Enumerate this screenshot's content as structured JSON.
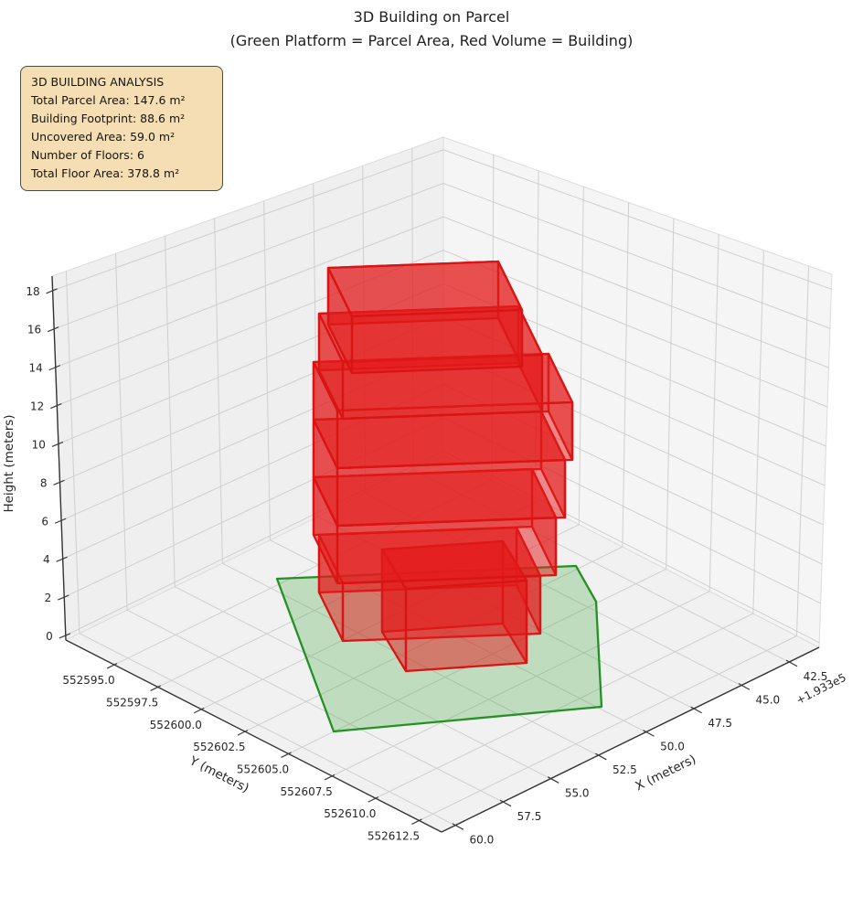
{
  "title": {
    "line1": "3D Building on Parcel",
    "line2": "(Green Platform = Parcel Area, Red Volume = Building)"
  },
  "info_box": {
    "lines": [
      "3D BUILDING ANALYSIS",
      "Total Parcel Area: 147.6 m²",
      "Building Footprint: 88.6 m²",
      "Uncovered Area: 59.0 m²",
      "Number of Floors: 6",
      "Total Floor Area: 378.8 m²"
    ]
  },
  "axes": {
    "x": {
      "label": "X (meters)",
      "ticks": [
        "42.5",
        "45.0",
        "47.5",
        "50.0",
        "52.5",
        "55.0",
        "57.5",
        "60.0"
      ],
      "offset_text": "+1.933e5"
    },
    "y": {
      "label": "Y (meters)",
      "ticks": [
        "552595.0",
        "552597.5",
        "552600.0",
        "552602.5",
        "552605.0",
        "552607.5",
        "552610.0",
        "552612.5"
      ]
    },
    "z": {
      "label": "Height (meters)",
      "ticks": [
        "0",
        "2",
        "4",
        "6",
        "8",
        "10",
        "12",
        "14",
        "16",
        "18"
      ]
    }
  },
  "chart_data": {
    "type": "3d_building_plot",
    "title": "3D Building on Parcel",
    "subtitle": "(Green Platform = Parcel Area, Red Volume = Building)",
    "x_axis": {
      "label": "X (meters)",
      "tick_values": [
        42.5,
        45.0,
        47.5,
        50.0,
        52.5,
        55.0,
        57.5,
        60.0
      ],
      "offset": "+1.933e5"
    },
    "y_axis": {
      "label": "Y (meters)",
      "tick_values": [
        552595.0,
        552597.5,
        552600.0,
        552602.5,
        552605.0,
        552607.5,
        552610.0,
        552612.5
      ]
    },
    "z_axis": {
      "label": "Height (meters)",
      "tick_values": [
        0,
        2,
        4,
        6,
        8,
        10,
        12,
        14,
        16,
        18
      ]
    },
    "analysis": {
      "total_parcel_area_m2": 147.6,
      "building_footprint_m2": 88.6,
      "uncovered_area_m2": 59.0,
      "number_of_floors": 6,
      "total_floor_area_m2": 378.8
    },
    "building": {
      "floors": 6,
      "floor_height_m": 3.0,
      "building_height_m": 18.0,
      "stepped_setbacks": true,
      "face_color": "#e31a1a",
      "face_alpha": 0.5,
      "edge_color": "#d91414"
    },
    "parcel": {
      "area_m2": 147.6,
      "elevation_m": 0,
      "face_color": "#2ca02c",
      "face_alpha": 0.25,
      "edge_color": "#249124",
      "vertex_count": 5
    },
    "grid": true,
    "legend_position": "none"
  }
}
